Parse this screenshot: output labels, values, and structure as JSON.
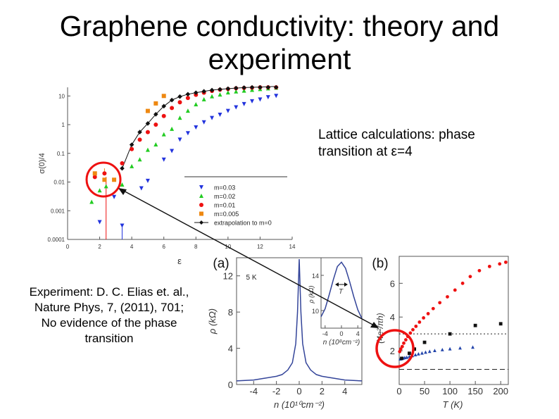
{
  "slide": {
    "title_line1": "Graphene conductivity: theory and",
    "title_line2": "experiment",
    "right_note_line1": "Lattice calculations: phase",
    "right_note_line2": "transition at ε=4",
    "left_note_lines": [
      "Experiment: D. C. Elias et. al.,",
      "Nature Phys, 7, (2011), 701;",
      "No evidence of the phase",
      "transition"
    ]
  },
  "colors": {
    "blue": "#2233dd",
    "green": "#22cc22",
    "red": "#ee1111",
    "orange": "#ee8811",
    "black": "#111111",
    "highlight": "#ee1111",
    "panel_line": "#334499"
  },
  "chart_data": [
    {
      "type": "scatter",
      "title": "",
      "xlabel": "ε",
      "ylabel": "σ(0)/4",
      "xlim": [
        0,
        14
      ],
      "ylim": [
        0.0001,
        20
      ],
      "yscale": "log",
      "x_ticks": [
        "0",
        "2",
        "4",
        "6",
        "8",
        "10",
        "12",
        "14"
      ],
      "y_ticks": [
        "0.0001",
        "0.001",
        "0.01",
        "0.1",
        "1",
        "10"
      ],
      "legend_position": "lower-right",
      "series": [
        {
          "name": "m=0.03",
          "marker": "triangle-down",
          "color": "#2233dd",
          "x": [
            2,
            2.9,
            3.4,
            4.6,
            5,
            6,
            6.5,
            7,
            7.5,
            8,
            8.5,
            9,
            9.5,
            10,
            10.5,
            11,
            11.5,
            12,
            12.5,
            13
          ],
          "y": [
            0.0004,
            0.003,
            0.0003,
            0.006,
            0.011,
            0.06,
            0.12,
            0.3,
            0.5,
            0.8,
            1.2,
            1.7,
            2.2,
            3,
            4,
            5.2,
            6.5,
            7.5,
            9,
            10
          ]
        },
        {
          "name": "m=0.02",
          "marker": "triangle",
          "color": "#22cc22",
          "x": [
            1.5,
            2,
            2.4,
            3.4,
            4,
            4.5,
            5,
            5.5,
            6,
            6.5,
            7,
            7.5,
            8,
            8.5,
            9,
            9.5,
            10,
            10.5,
            11,
            11.5,
            12,
            12.5,
            13
          ],
          "y": [
            0.002,
            0.005,
            0.007,
            0.008,
            0.035,
            0.06,
            0.13,
            0.2,
            0.45,
            0.7,
            1.7,
            3,
            5,
            7.5,
            9.5,
            11,
            13,
            14,
            15,
            16,
            17,
            18,
            19
          ]
        },
        {
          "name": "m=0.01",
          "marker": "circle",
          "color": "#ee1111",
          "x": [
            1.7,
            2.3,
            3.4,
            4,
            4.5,
            5,
            5.5,
            6,
            6.5,
            7,
            7.5,
            8,
            8.5,
            9,
            9.5,
            10,
            10.5,
            11,
            11.5,
            12,
            12.5,
            13
          ],
          "y": [
            0.015,
            0.02,
            0.045,
            0.14,
            0.3,
            0.55,
            1,
            2,
            3.8,
            6,
            8.5,
            11,
            13,
            15,
            16.5,
            17.5,
            18.5,
            19,
            19.5,
            20,
            20.5,
            21
          ]
        },
        {
          "name": "m=0.005",
          "marker": "square",
          "color": "#ee8811",
          "x": [
            1.7,
            2.3,
            2.9,
            5,
            5.5,
            6
          ],
          "y": [
            0.02,
            0.012,
            0.012,
            3,
            5.5,
            10
          ]
        },
        {
          "name": "extrapolation to m=0",
          "marker": "diamond",
          "color": "#111111",
          "x": [
            3.4,
            4,
            4.5,
            5,
            5.5,
            6,
            6.5,
            7,
            7.5,
            8,
            8.5,
            9,
            9.5,
            10,
            10.5,
            11,
            11.5,
            12,
            12.5,
            13
          ],
          "y": [
            0.03,
            0.2,
            0.55,
            1.1,
            2.3,
            4.4,
            7.2,
            9.5,
            11.5,
            13,
            14.5,
            16,
            17,
            18,
            18.8,
            19.5,
            20,
            20.5,
            21,
            21.5
          ]
        }
      ]
    },
    {
      "type": "line",
      "panel_label": "(a)",
      "annotation": "5 K",
      "xlabel": "n (10¹⁰cm⁻²)",
      "ylabel": "ρ (kΩ)",
      "xlim": [
        -5.5,
        5.5
      ],
      "ylim": [
        0,
        14
      ],
      "x_ticks": [
        "-4",
        "-2",
        "0",
        "2",
        "4"
      ],
      "y_ticks": [
        "0",
        "4",
        "8",
        "12"
      ],
      "series": [
        {
          "name": "",
          "x": [
            -5.5,
            -4,
            -3,
            -2,
            -1.5,
            -1,
            -0.6,
            -0.3,
            -0.15,
            0,
            0.15,
            0.3,
            0.6,
            1,
            1.5,
            2,
            3,
            4,
            5.5
          ],
          "y": [
            0.4,
            0.5,
            0.7,
            0.9,
            1.1,
            1.6,
            2.4,
            4.5,
            8,
            14.3,
            8,
            4.5,
            2.4,
            1.6,
            1.1,
            0.9,
            0.7,
            0.5,
            0.4
          ]
        }
      ],
      "inset": {
        "xlabel": "n (10⁸cm⁻²)",
        "ylabel": "ρ (kΩ)",
        "xlim": [
          -5,
          5
        ],
        "ylim": [
          8,
          16
        ],
        "x_ticks": [
          "-4",
          "0",
          "4"
        ],
        "y_ticks": [
          "10",
          "14"
        ],
        "arrow_label": "T",
        "series": [
          {
            "name": "",
            "x": [
              -5,
              -4,
              -3,
              -2,
              -1,
              0,
              1,
              2,
              3,
              4,
              5
            ],
            "y": [
              9.3,
              10.2,
              11.8,
              13.5,
              15,
              15.5,
              14.8,
              13.3,
              11.6,
              10.1,
              9.1
            ]
          }
        ]
      }
    },
    {
      "type": "scatter",
      "panel_label": "(b)",
      "xlabel": "T (K)",
      "ylabel": "(4e²/πh)",
      "xlim": [
        0,
        215
      ],
      "ylim": [
        0,
        7.6
      ],
      "x_ticks": [
        "0",
        "50",
        "100",
        "150",
        "200"
      ],
      "y_ticks": [
        "2",
        "4",
        "6"
      ],
      "reference_lines": [
        3.0,
        0.9
      ],
      "series": [
        {
          "name": "",
          "marker": "circle",
          "color": "#ee1111",
          "x": [
            1,
            3,
            6,
            9,
            13,
            17,
            22,
            27,
            33,
            40,
            48,
            57,
            67,
            80,
            95,
            110,
            125,
            140,
            158,
            178,
            198,
            210
          ],
          "y": [
            1.95,
            2.1,
            2.25,
            2.45,
            2.65,
            2.85,
            3.05,
            3.25,
            3.45,
            3.7,
            3.95,
            4.2,
            4.5,
            4.85,
            5.2,
            5.6,
            6.0,
            6.4,
            6.75,
            7.0,
            7.15,
            7.25
          ]
        },
        {
          "name": "",
          "marker": "triangle",
          "color": "#2244aa",
          "x": [
            2,
            5,
            8,
            11,
            15,
            20,
            26,
            32,
            38,
            45,
            52,
            60,
            70,
            85,
            100,
            120,
            145
          ],
          "y": [
            1.5,
            1.52,
            1.55,
            1.58,
            1.6,
            1.65,
            1.7,
            1.75,
            1.8,
            1.85,
            1.9,
            1.95,
            2.0,
            2.05,
            2.1,
            2.15,
            2.2
          ]
        },
        {
          "name": "",
          "marker": "square",
          "color": "#111111",
          "x": [
            5,
            20,
            30,
            50,
            100,
            150,
            200
          ],
          "y": [
            1.55,
            1.85,
            2.1,
            2.5,
            3.0,
            3.5,
            3.6
          ]
        }
      ]
    }
  ]
}
